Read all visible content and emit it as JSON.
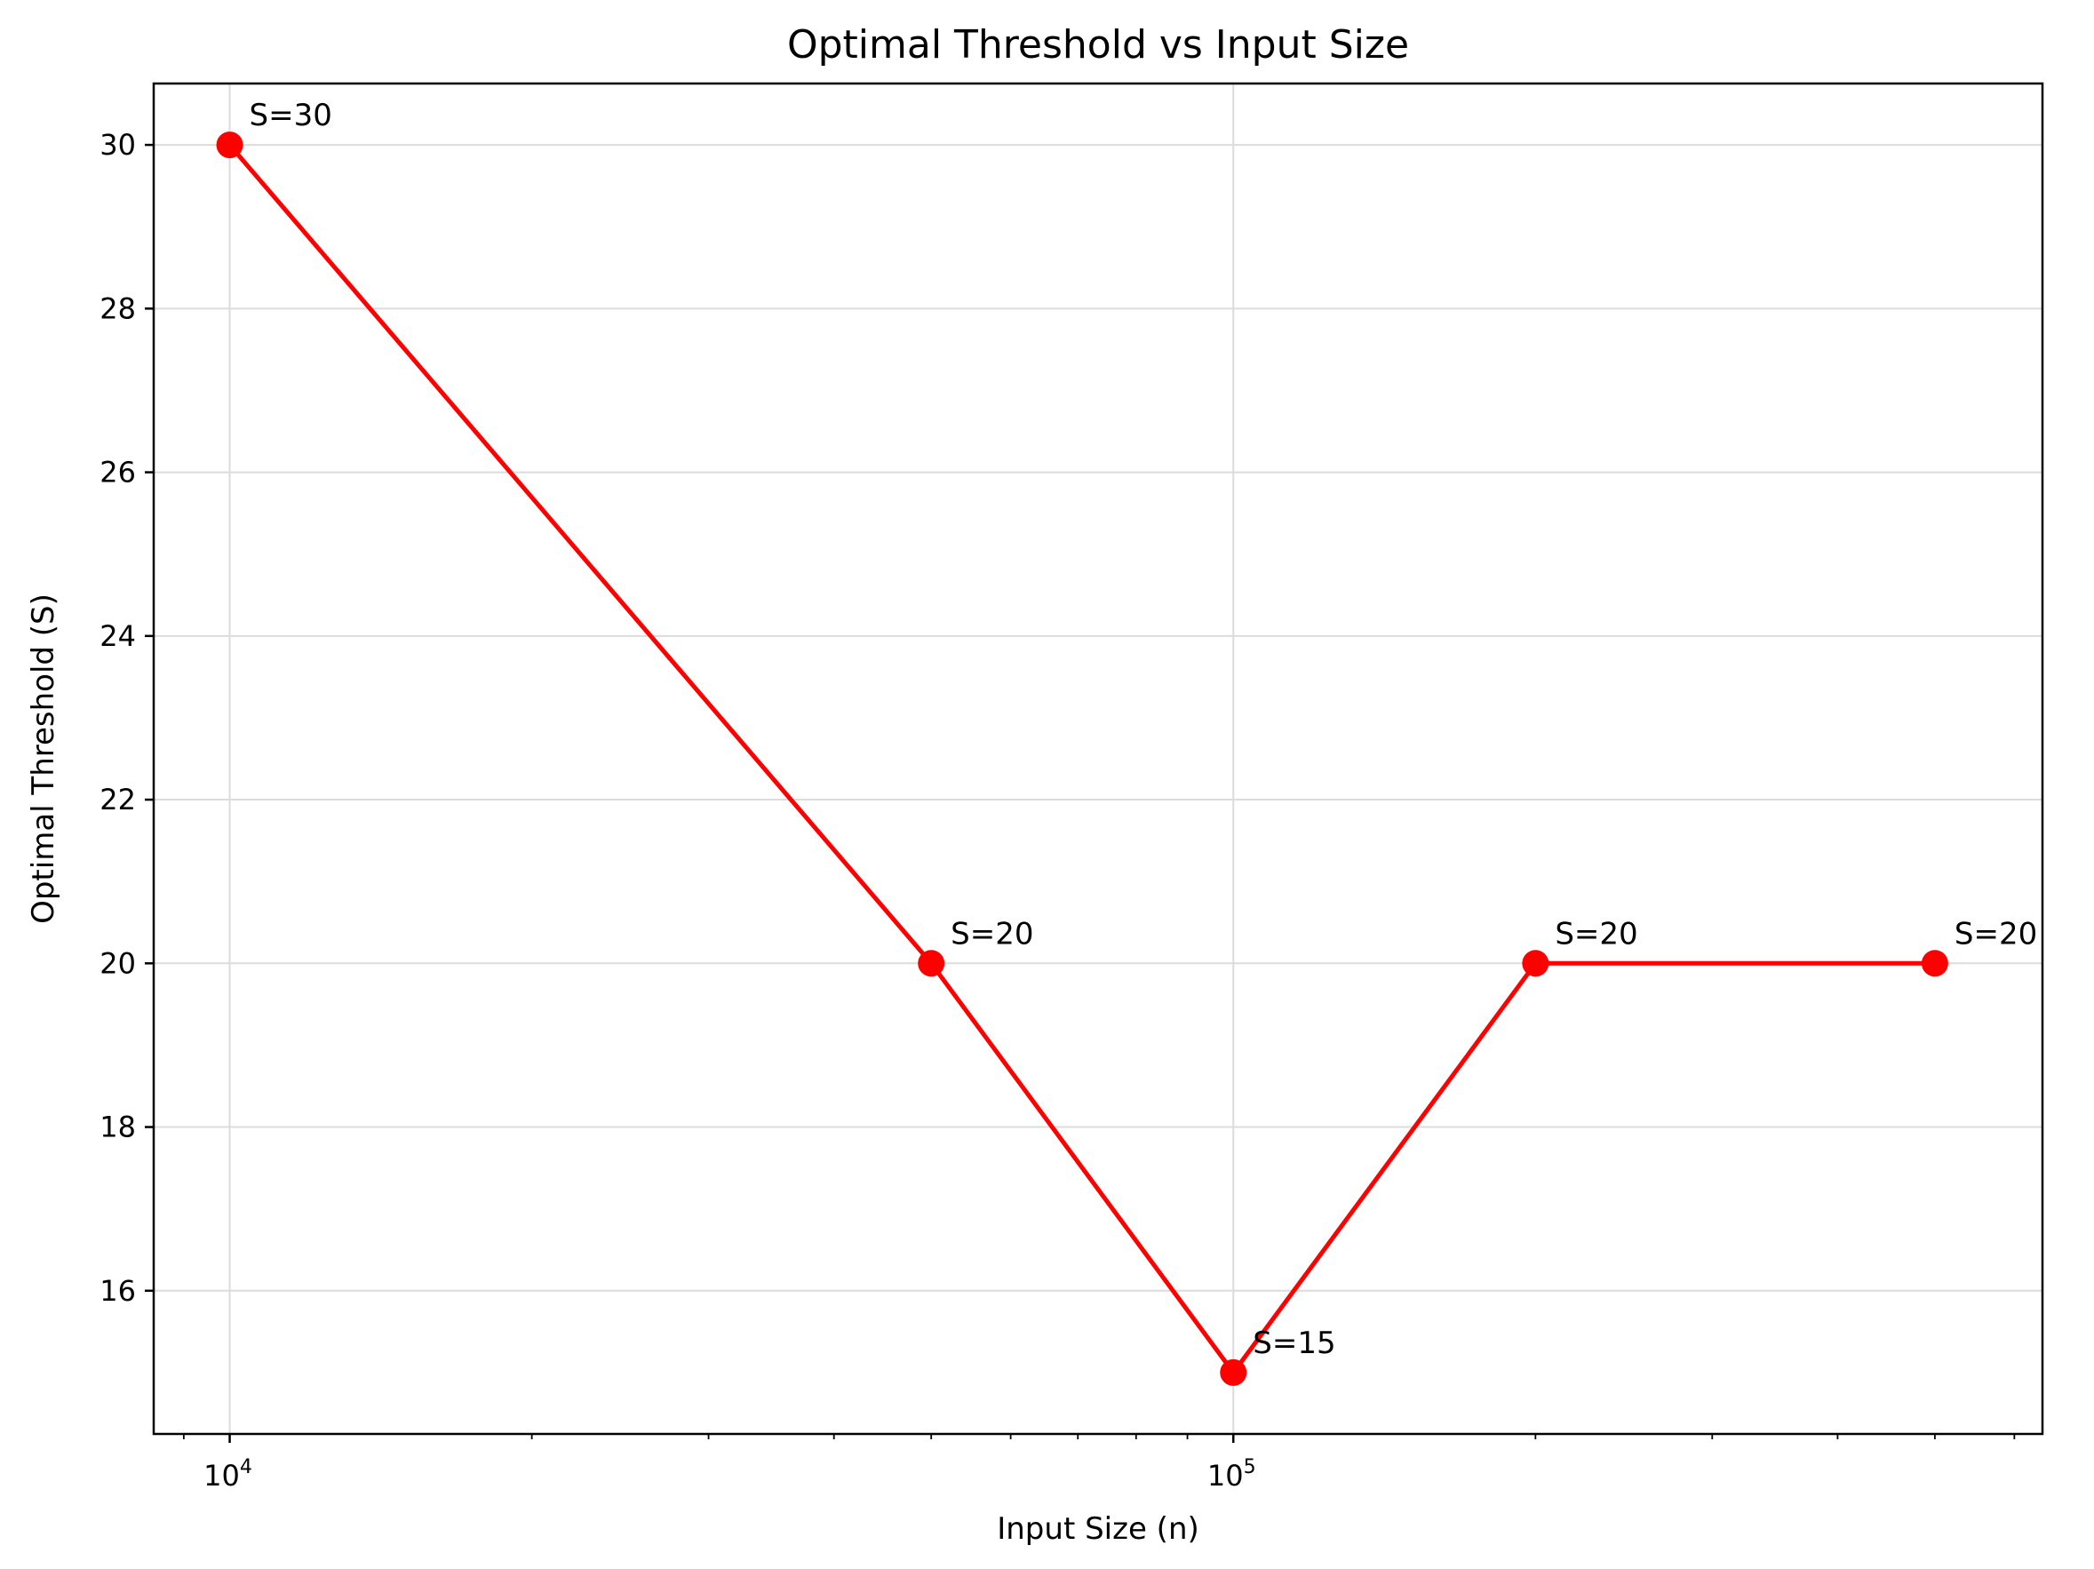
{
  "chart_data": {
    "type": "line",
    "title": "Optimal Threshold vs Input Size",
    "xlabel": "Input Size (n)",
    "ylabel": "Optimal Threshold (S)",
    "xscale": "log",
    "xlim": [
      8400,
      640000
    ],
    "ylim": [
      14.25,
      30.75
    ],
    "x_ticks": [
      {
        "value": 10000,
        "base": "10",
        "exp": "4"
      },
      {
        "value": 100000,
        "base": "10",
        "exp": "5"
      }
    ],
    "y_ticks": [
      16,
      18,
      20,
      22,
      24,
      26,
      28,
      30
    ],
    "grid": true,
    "color": "#ff0000",
    "series": [
      {
        "x": [
          10000,
          50000,
          100000,
          200000,
          500000
        ],
        "values": [
          30,
          20,
          15,
          20,
          20
        ],
        "labels": [
          "S=30",
          "S=20",
          "S=15",
          "S=20",
          "S=20"
        ]
      }
    ]
  }
}
